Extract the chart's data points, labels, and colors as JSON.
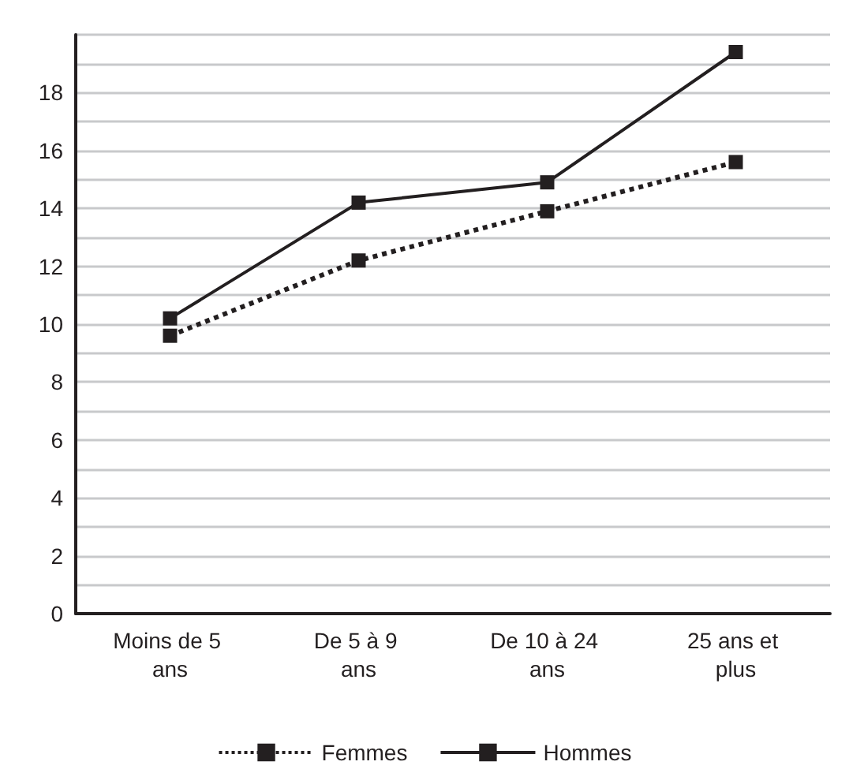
{
  "chart_data": {
    "type": "line",
    "categories": [
      "Moins de 5 ans",
      "De 5 à 9 ans",
      "De 10 à 24 ans",
      "25 ans et plus"
    ],
    "series": [
      {
        "name": "Femmes",
        "color": "#231f20",
        "values": [
          9.6,
          12.2,
          13.9,
          15.6
        ],
        "line_style": "dotted"
      },
      {
        "name": "Hommes",
        "color": "#231f20",
        "values": [
          10.2,
          14.2,
          14.9,
          19.4
        ],
        "line_style": "solid"
      }
    ],
    "ylim": [
      0,
      20
    ],
    "yticks": [
      0,
      {
        "value": 1,
        "label": null
      },
      2,
      {
        "value": 3,
        "label": null
      },
      4,
      {
        "value": 5,
        "label": null
      },
      6,
      {
        "value": 7,
        "label": null
      },
      8,
      {
        "value": 9,
        "label": null
      },
      10,
      {
        "value": 11,
        "label": null
      },
      12,
      {
        "value": 13,
        "label": null
      },
      14,
      {
        "value": 15,
        "label": null
      },
      16,
      {
        "value": 17,
        "label": null
      },
      18,
      {
        "value": 19,
        "label": null
      },
      {
        "value": 20,
        "label": null
      }
    ],
    "grid": "y",
    "legend": "bottom",
    "marker": "square"
  }
}
